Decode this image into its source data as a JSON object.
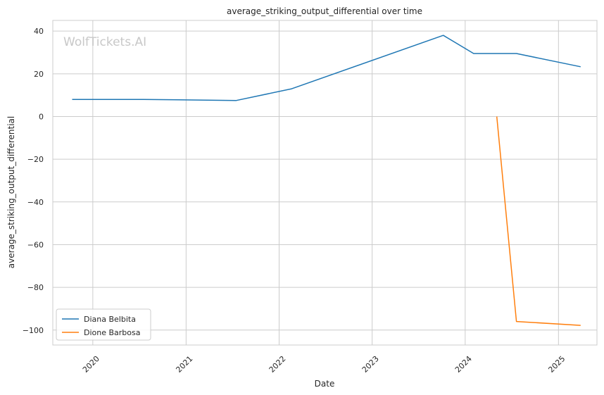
{
  "chart_data": {
    "type": "line",
    "title": "average_striking_output_differential over time",
    "xlabel": "Date",
    "ylabel": "average_striking_output_differential",
    "watermark": "WolfTickets.AI",
    "xlim": [
      "2019-07-28",
      "2025-06-01"
    ],
    "ylim": [
      -107,
      45
    ],
    "x_ticks": [
      "2020-01-01",
      "2021-01-01",
      "2022-01-01",
      "2023-01-01",
      "2024-01-01",
      "2025-01-01"
    ],
    "x_tick_labels": [
      "2020",
      "2021",
      "2022",
      "2023",
      "2024",
      "2025"
    ],
    "y_ticks": [
      40,
      20,
      0,
      -20,
      -40,
      -60,
      -80,
      -100
    ],
    "y_tick_labels": [
      "40",
      "20",
      "0",
      "−20",
      "−40",
      "−60",
      "−80",
      "−100"
    ],
    "grid": true,
    "legend_position": "lower-left",
    "series": [
      {
        "name": "Diana Belbita",
        "color": "#1f77b4",
        "points": [
          {
            "x": "2019-10-12",
            "y": 8.0
          },
          {
            "x": "2020-07-18",
            "y": 8.0
          },
          {
            "x": "2021-07-17",
            "y": 7.5
          },
          {
            "x": "2022-02-19",
            "y": 13.0
          },
          {
            "x": "2023-10-07",
            "y": 38.0
          },
          {
            "x": "2024-02-03",
            "y": 29.5
          },
          {
            "x": "2024-07-20",
            "y": 29.5
          },
          {
            "x": "2025-03-29",
            "y": 23.3
          }
        ]
      },
      {
        "name": "Dione Barbosa",
        "color": "#ff7f0e",
        "points": [
          {
            "x": "2024-05-04",
            "y": 0.0
          },
          {
            "x": "2024-07-20",
            "y": -96.0
          },
          {
            "x": "2025-03-29",
            "y": -97.8
          }
        ]
      }
    ]
  }
}
